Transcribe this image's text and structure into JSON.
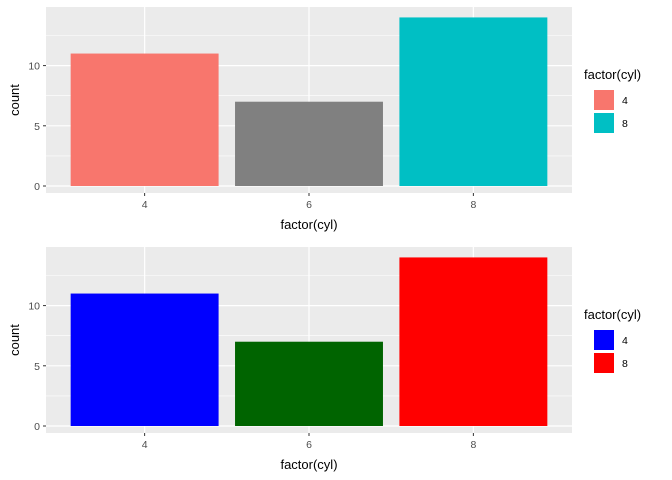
{
  "chart_data": [
    {
      "type": "bar",
      "categories": [
        "4",
        "6",
        "8"
      ],
      "values": [
        11,
        7,
        14
      ],
      "colors": [
        "#F8766D",
        "#808080",
        "#00BFC4"
      ],
      "xlabel": "factor(cyl)",
      "ylabel": "count",
      "yticks": [
        0,
        5,
        10
      ],
      "ylim": [
        0,
        14.7
      ],
      "grid": true,
      "panel_background": "#EBEBEB",
      "legend": {
        "title": "factor(cyl)",
        "placement": "right",
        "entries": [
          {
            "label": "4",
            "color": "#F8766D"
          },
          {
            "label": "8",
            "color": "#00BFC4"
          }
        ]
      }
    },
    {
      "type": "bar",
      "categories": [
        "4",
        "6",
        "8"
      ],
      "values": [
        11,
        7,
        14
      ],
      "colors": [
        "#0000FF",
        "#006400",
        "#FF0000"
      ],
      "xlabel": "factor(cyl)",
      "ylabel": "count",
      "yticks": [
        0,
        5,
        10
      ],
      "ylim": [
        0,
        14.7
      ],
      "grid": true,
      "panel_background": "#EBEBEB",
      "legend": {
        "title": "factor(cyl)",
        "placement": "right",
        "entries": [
          {
            "label": "4",
            "color": "#0000FF"
          },
          {
            "label": "8",
            "color": "#FF0000"
          }
        ]
      }
    }
  ]
}
